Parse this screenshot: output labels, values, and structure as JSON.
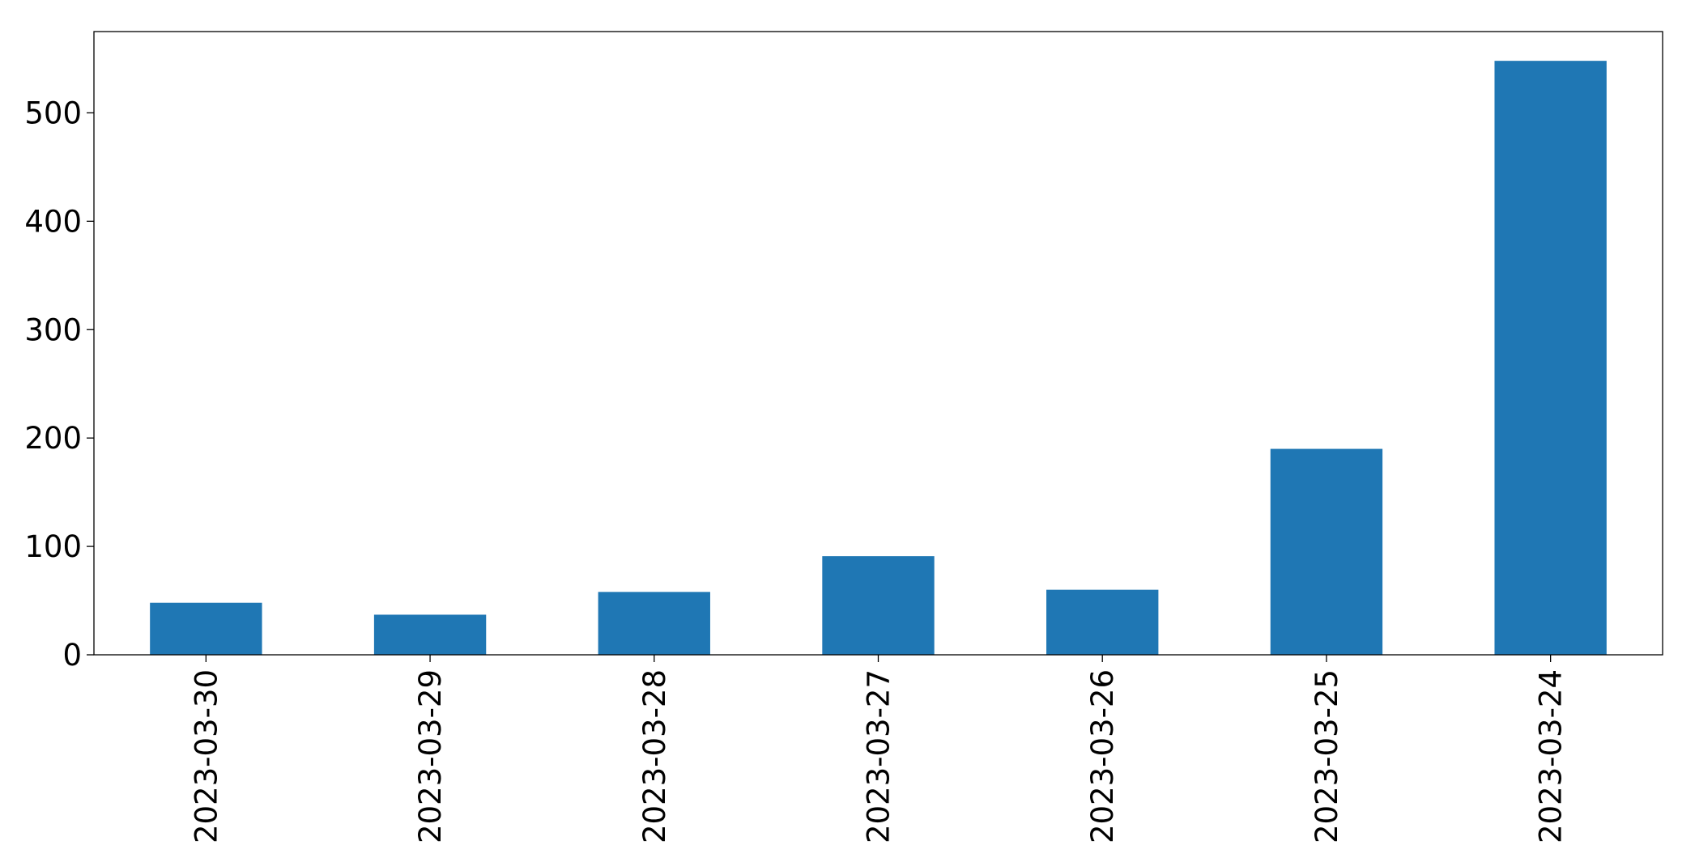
{
  "chart_data": {
    "type": "bar",
    "categories": [
      "2023-03-30",
      "2023-03-29",
      "2023-03-28",
      "2023-03-27",
      "2023-03-26",
      "2023-03-25",
      "2023-03-24"
    ],
    "values": [
      48,
      37,
      58,
      91,
      60,
      190,
      548
    ],
    "color": "#1f77b4",
    "ylim": [
      0,
      575
    ],
    "yticks": [
      0,
      100,
      200,
      300,
      400,
      500
    ],
    "grid": false
  }
}
